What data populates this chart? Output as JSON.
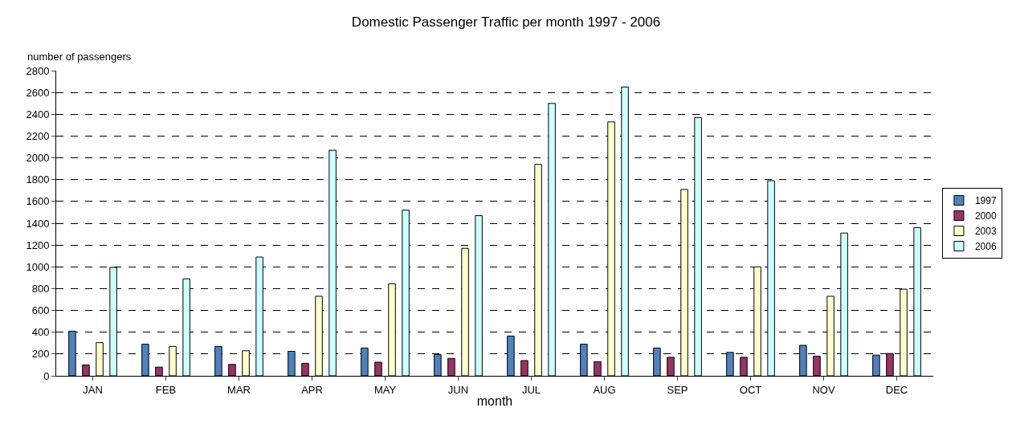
{
  "chart_data": {
    "type": "bar",
    "title": "Domestic Passenger Traffic per month 1997 - 2006",
    "xlabel": "month",
    "ylabel": "number of passengers",
    "categories": [
      "JAN",
      "FEB",
      "MAR",
      "APR",
      "MAY",
      "JUN",
      "JUL",
      "AUG",
      "SEP",
      "OCT",
      "NOV",
      "DEC"
    ],
    "series": [
      {
        "name": "1997",
        "color": "#4f81bd",
        "values": [
          410,
          290,
          270,
          225,
          255,
          195,
          365,
          290,
          255,
          215,
          280,
          190
        ]
      },
      {
        "name": "2000",
        "color": "#993366",
        "values": [
          100,
          80,
          105,
          115,
          125,
          160,
          140,
          130,
          170,
          170,
          180,
          205
        ]
      },
      {
        "name": "2003",
        "color": "#ffffcc",
        "values": [
          305,
          270,
          230,
          730,
          845,
          1170,
          1940,
          2330,
          1710,
          1000,
          730,
          795
        ]
      },
      {
        "name": "2006",
        "color": "#ccffff",
        "values": [
          995,
          890,
          1090,
          2070,
          1520,
          1470,
          2500,
          2650,
          2370,
          1790,
          1310,
          1360
        ]
      }
    ],
    "ylim": [
      0,
      2800
    ],
    "yticks": [
      0,
      200,
      400,
      600,
      800,
      1000,
      1200,
      1400,
      1600,
      1800,
      2000,
      2200,
      2400,
      2600,
      2800
    ],
    "grid": "y",
    "legend": "right"
  }
}
